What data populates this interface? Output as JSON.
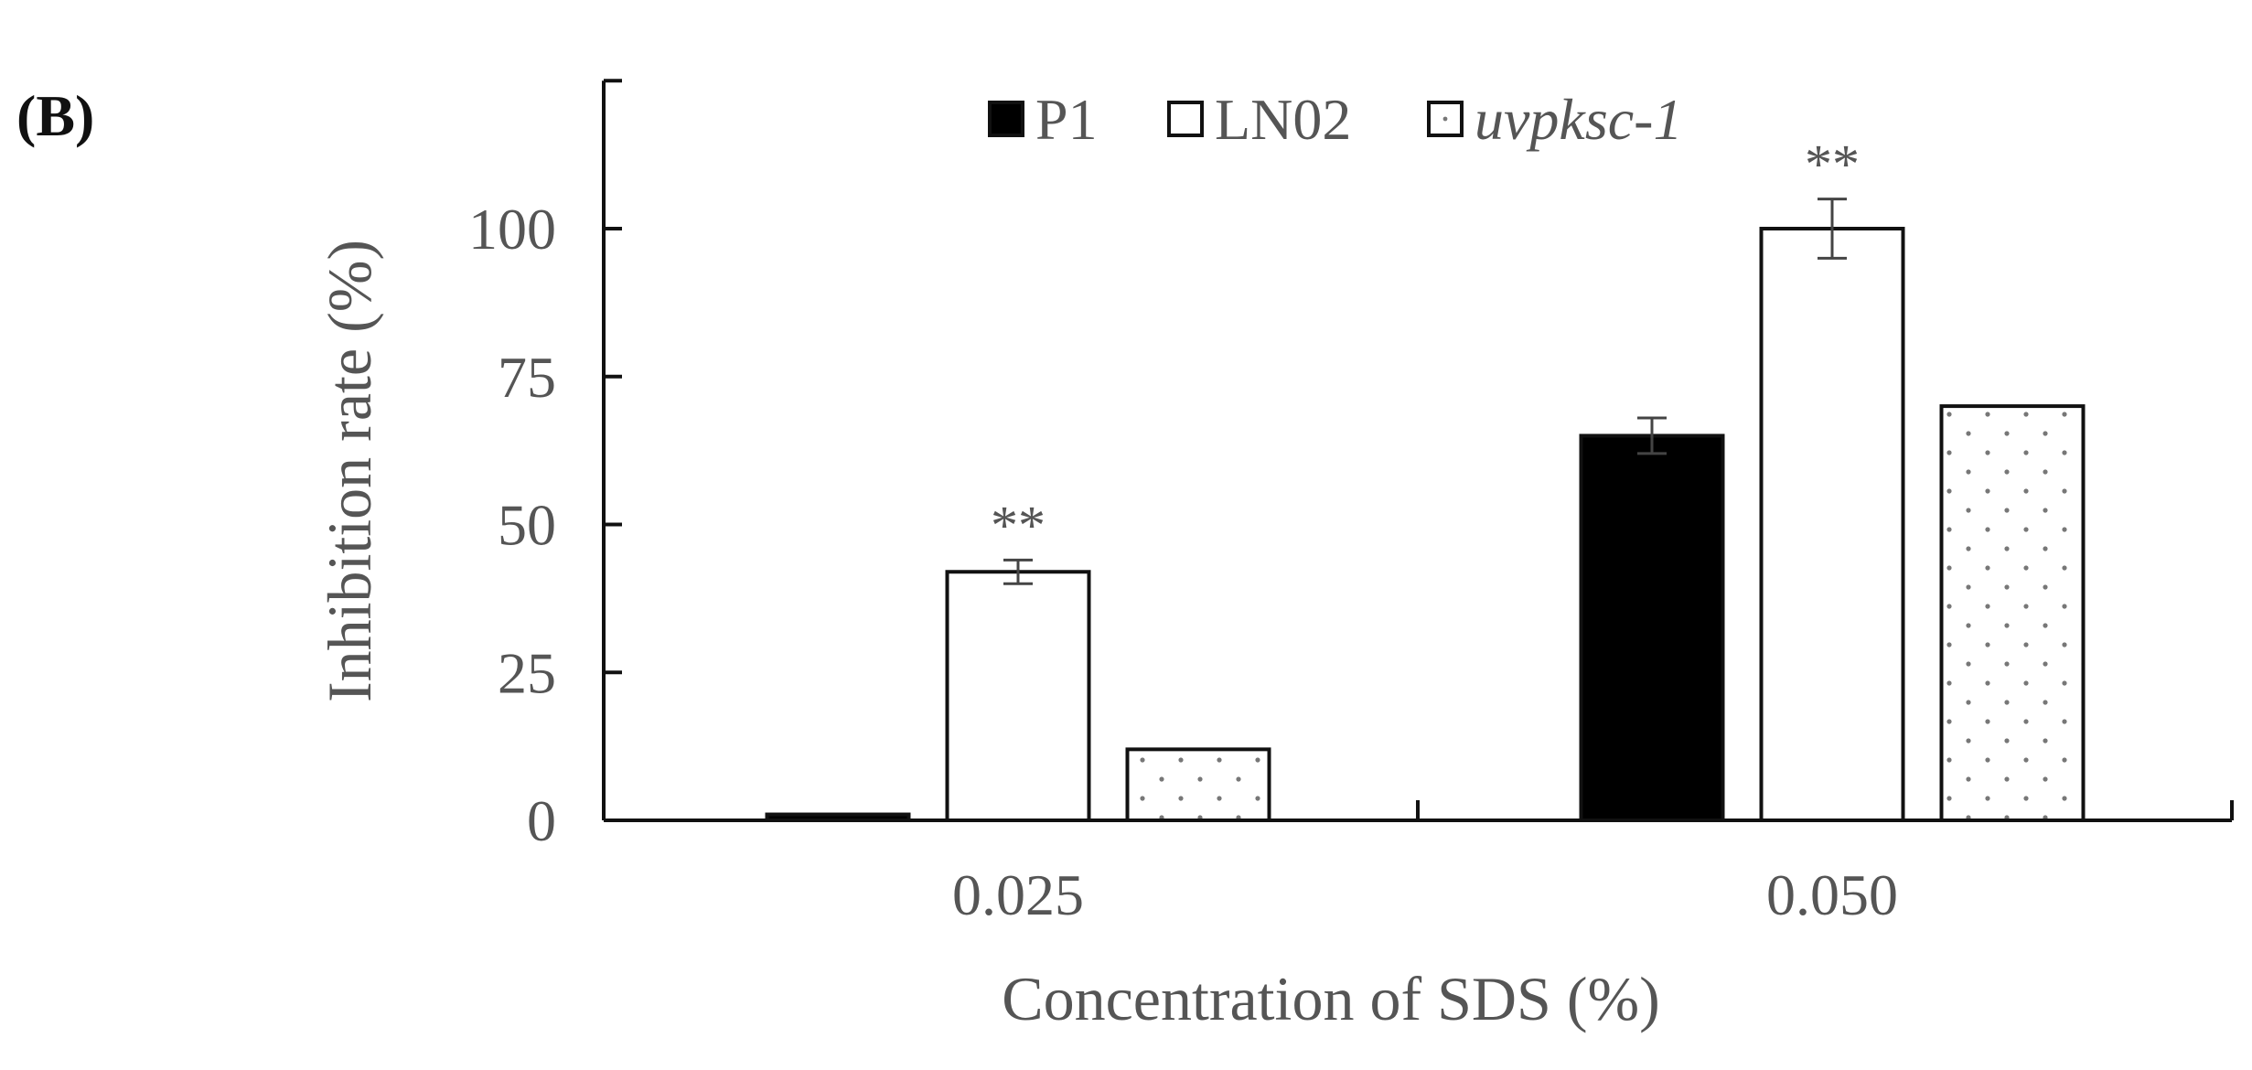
{
  "panel_label": "(B)",
  "colors": {
    "axis": "#111111",
    "text": "#555555",
    "p1_fill": "#000000",
    "ln02_fill": "#ffffff",
    "uvpksc_fill": "#ffffff",
    "uvpksc_dots": "#777777",
    "errorbar": "#444444"
  },
  "chart_data": {
    "type": "bar",
    "title": "",
    "xlabel": "Concentration of SDS (%)",
    "ylabel": "Inhibition rate (%)",
    "categories": [
      "0.025",
      "0.050"
    ],
    "ylim": [
      0,
      125
    ],
    "yticks": [
      0,
      25,
      50,
      75,
      100
    ],
    "ytick_labels": [
      "0",
      "25",
      "50",
      "75",
      "100"
    ],
    "grid": false,
    "legend_position": "top-center",
    "series": [
      {
        "name": "P1",
        "pattern": "solid-black",
        "values": [
          1,
          65
        ],
        "errors": [
          0,
          3
        ]
      },
      {
        "name": "LN02",
        "pattern": "white",
        "values": [
          42,
          100
        ],
        "errors": [
          2,
          5
        ]
      },
      {
        "name": "uvpksc-1",
        "pattern": "white-dotted",
        "italic": true,
        "values": [
          12,
          70
        ],
        "errors": [
          0,
          0
        ]
      }
    ],
    "annotations": [
      {
        "category": "0.025",
        "series": "LN02",
        "text": "**"
      },
      {
        "category": "0.050",
        "series": "LN02",
        "text": "**"
      }
    ]
  }
}
